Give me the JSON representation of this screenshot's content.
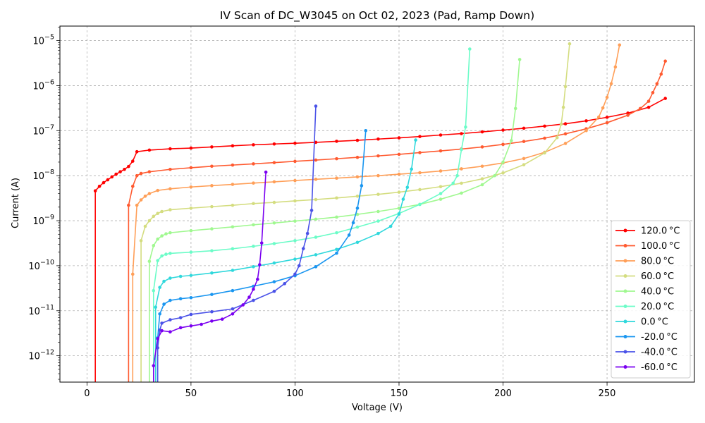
{
  "chart_data": {
    "type": "line",
    "title": "IV Scan of DC_W3045 on Oct 02, 2023 (Pad, Ramp Down)",
    "xlabel": "Voltage (V)",
    "ylabel": "Current (A)",
    "xlim": [
      -13,
      292
    ],
    "ylim": [
      2.6e-13,
      2.1e-05
    ],
    "yscale": "log",
    "grid": true,
    "legend_position": "lower right",
    "x_ticks": [
      0,
      50,
      100,
      150,
      200,
      250
    ],
    "y_tick_exponents": [
      -12,
      -11,
      -10,
      -9,
      -8,
      -7,
      -6,
      -5
    ],
    "series": [
      {
        "name": "120.0$^\\circ$C",
        "legend": "120.0 °C",
        "color": "#ff0000",
        "points": [
          [
            4,
            1e-13
          ],
          [
            4,
            4.6e-09
          ],
          [
            6,
            5.8e-09
          ],
          [
            8,
            7e-09
          ],
          [
            10,
            8.1e-09
          ],
          [
            12,
            9.4e-09
          ],
          [
            14,
            1.08e-08
          ],
          [
            16,
            1.22e-08
          ],
          [
            18,
            1.38e-08
          ],
          [
            20,
            1.6e-08
          ],
          [
            22,
            2.1e-08
          ],
          [
            24,
            3.4e-08
          ],
          [
            30,
            3.7e-08
          ],
          [
            40,
            3.95e-08
          ],
          [
            50,
            4.1e-08
          ],
          [
            60,
            4.35e-08
          ],
          [
            70,
            4.6e-08
          ],
          [
            80,
            4.85e-08
          ],
          [
            90,
            5.05e-08
          ],
          [
            100,
            5.25e-08
          ],
          [
            110,
            5.5e-08
          ],
          [
            120,
            5.8e-08
          ],
          [
            130,
            6.1e-08
          ],
          [
            140,
            6.5e-08
          ],
          [
            150,
            6.9e-08
          ],
          [
            160,
            7.4e-08
          ],
          [
            170,
            8e-08
          ],
          [
            180,
            8.6e-08
          ],
          [
            190,
            9.4e-08
          ],
          [
            200,
            1.03e-07
          ],
          [
            210,
            1.13e-07
          ],
          [
            220,
            1.26e-07
          ],
          [
            230,
            1.42e-07
          ],
          [
            240,
            1.65e-07
          ],
          [
            250,
            1.98e-07
          ],
          [
            260,
            2.45e-07
          ],
          [
            270,
            3.3e-07
          ],
          [
            278,
            5.2e-07
          ]
        ]
      },
      {
        "name": "100.0$^\\circ$C",
        "legend": "100.0 °C",
        "color": "#ff5a30",
        "points": [
          [
            20,
            1e-13
          ],
          [
            20,
            2.2e-09
          ],
          [
            22,
            5.8e-09
          ],
          [
            24,
            1e-08
          ],
          [
            26,
            1.12e-08
          ],
          [
            30,
            1.22e-08
          ],
          [
            40,
            1.38e-08
          ],
          [
            50,
            1.5e-08
          ],
          [
            60,
            1.62e-08
          ],
          [
            70,
            1.72e-08
          ],
          [
            80,
            1.83e-08
          ],
          [
            90,
            1.95e-08
          ],
          [
            100,
            2.08e-08
          ],
          [
            110,
            2.22e-08
          ],
          [
            120,
            2.38e-08
          ],
          [
            130,
            2.55e-08
          ],
          [
            140,
            2.75e-08
          ],
          [
            150,
            2.98e-08
          ],
          [
            160,
            3.25e-08
          ],
          [
            170,
            3.55e-08
          ],
          [
            180,
            3.9e-08
          ],
          [
            190,
            4.35e-08
          ],
          [
            200,
            4.95e-08
          ],
          [
            210,
            5.75e-08
          ],
          [
            220,
            6.8e-08
          ],
          [
            230,
            8.5e-08
          ],
          [
            240,
            1.1e-07
          ],
          [
            250,
            1.5e-07
          ],
          [
            260,
            2.2e-07
          ],
          [
            266,
            3.1e-07
          ],
          [
            270,
            4.5e-07
          ],
          [
            272,
            7e-07
          ],
          [
            274,
            1.1e-06
          ],
          [
            276,
            1.8e-06
          ],
          [
            278,
            3.5e-06
          ]
        ]
      },
      {
        "name": "80.0$^\\circ$C",
        "legend": "80.0 °C",
        "color": "#ff9f58",
        "points": [
          [
            22,
            1e-13
          ],
          [
            22,
            6.5e-11
          ],
          [
            24,
            2.2e-09
          ],
          [
            26,
            2.9e-09
          ],
          [
            28,
            3.5e-09
          ],
          [
            30,
            4e-09
          ],
          [
            34,
            4.7e-09
          ],
          [
            40,
            5.1e-09
          ],
          [
            50,
            5.6e-09
          ],
          [
            60,
            6e-09
          ],
          [
            70,
            6.4e-09
          ],
          [
            80,
            6.85e-09
          ],
          [
            90,
            7.3e-09
          ],
          [
            100,
            7.8e-09
          ],
          [
            110,
            8.3e-09
          ],
          [
            120,
            8.8e-09
          ],
          [
            130,
            9.4e-09
          ],
          [
            140,
            1e-08
          ],
          [
            150,
            1.08e-08
          ],
          [
            160,
            1.16e-08
          ],
          [
            170,
            1.27e-08
          ],
          [
            180,
            1.42e-08
          ],
          [
            190,
            1.62e-08
          ],
          [
            200,
            1.92e-08
          ],
          [
            210,
            2.4e-08
          ],
          [
            220,
            3.3e-08
          ],
          [
            230,
            5.2e-08
          ],
          [
            240,
            1e-07
          ],
          [
            246,
            2e-07
          ],
          [
            248,
            3.2e-07
          ],
          [
            250,
            5.5e-07
          ],
          [
            252,
            1.1e-06
          ],
          [
            254,
            2.6e-06
          ],
          [
            256,
            8e-06
          ]
        ]
      },
      {
        "name": "60.0$^\\circ$C",
        "legend": "60.0 °C",
        "color": "#d4dd80",
        "points": [
          [
            26,
            1e-13
          ],
          [
            26,
            3.6e-10
          ],
          [
            28,
            7.5e-10
          ],
          [
            30,
            1e-09
          ],
          [
            32,
            1.25e-09
          ],
          [
            34,
            1.45e-09
          ],
          [
            36,
            1.6e-09
          ],
          [
            40,
            1.75e-09
          ],
          [
            50,
            1.9e-09
          ],
          [
            60,
            2.05e-09
          ],
          [
            70,
            2.2e-09
          ],
          [
            80,
            2.4e-09
          ],
          [
            90,
            2.55e-09
          ],
          [
            100,
            2.75e-09
          ],
          [
            110,
            2.95e-09
          ],
          [
            120,
            3.2e-09
          ],
          [
            130,
            3.5e-09
          ],
          [
            140,
            3.85e-09
          ],
          [
            150,
            4.3e-09
          ],
          [
            160,
            4.9e-09
          ],
          [
            170,
            5.7e-09
          ],
          [
            180,
            6.8e-09
          ],
          [
            190,
            8.5e-09
          ],
          [
            200,
            1.15e-08
          ],
          [
            210,
            1.75e-08
          ],
          [
            220,
            3.2e-08
          ],
          [
            226,
            7e-08
          ],
          [
            228,
            1.4e-07
          ],
          [
            229,
            3.3e-07
          ],
          [
            230,
            9.5e-07
          ],
          [
            232,
            8.5e-06
          ]
        ]
      },
      {
        "name": "40.0$^\\circ$C",
        "legend": "40.0 °C",
        "color": "#a0f890",
        "points": [
          [
            30,
            1e-13
          ],
          [
            30,
            1.25e-10
          ],
          [
            32,
            2.8e-10
          ],
          [
            34,
            3.9e-10
          ],
          [
            36,
            4.6e-10
          ],
          [
            38,
            5.1e-10
          ],
          [
            40,
            5.4e-10
          ],
          [
            50,
            6e-10
          ],
          [
            60,
            6.6e-10
          ],
          [
            70,
            7.3e-10
          ],
          [
            80,
            8.1e-10
          ],
          [
            90,
            8.9e-10
          ],
          [
            100,
            9.8e-10
          ],
          [
            110,
            1.08e-09
          ],
          [
            120,
            1.2e-09
          ],
          [
            130,
            1.38e-09
          ],
          [
            140,
            1.6e-09
          ],
          [
            150,
            1.9e-09
          ],
          [
            160,
            2.3e-09
          ],
          [
            170,
            3e-09
          ],
          [
            180,
            4.1e-09
          ],
          [
            190,
            6.3e-09
          ],
          [
            196,
            1e-08
          ],
          [
            200,
            2e-08
          ],
          [
            204,
            6e-08
          ],
          [
            206,
            3.1e-07
          ],
          [
            208,
            3.8e-06
          ]
        ]
      },
      {
        "name": "20.0$^\\circ$C",
        "legend": "20.0 °C",
        "color": "#6cfcc8",
        "points": [
          [
            32,
            1e-13
          ],
          [
            32,
            2.8e-11
          ],
          [
            34,
            1.3e-10
          ],
          [
            36,
            1.65e-10
          ],
          [
            38,
            1.8e-10
          ],
          [
            40,
            1.88e-10
          ],
          [
            50,
            2e-10
          ],
          [
            60,
            2.15e-10
          ],
          [
            70,
            2.38e-10
          ],
          [
            80,
            2.7e-10
          ],
          [
            90,
            3.1e-10
          ],
          [
            100,
            3.6e-10
          ],
          [
            110,
            4.3e-10
          ],
          [
            120,
            5.4e-10
          ],
          [
            130,
            7.2e-10
          ],
          [
            140,
            9.8e-10
          ],
          [
            150,
            1.45e-09
          ],
          [
            160,
            2.3e-09
          ],
          [
            170,
            4e-09
          ],
          [
            176,
            6.8e-09
          ],
          [
            178,
            1e-08
          ],
          [
            180,
            3.8e-08
          ],
          [
            182,
            1.2e-07
          ],
          [
            184,
            6.5e-06
          ]
        ]
      },
      {
        "name": "0.0$^\\circ$C",
        "legend": "0.0 °C",
        "color": "#30d8dc",
        "points": [
          [
            33,
            1e-13
          ],
          [
            33,
            1.2e-11
          ],
          [
            35,
            3.3e-11
          ],
          [
            37,
            4.5e-11
          ],
          [
            40,
            5.3e-11
          ],
          [
            45,
            5.8e-11
          ],
          [
            50,
            6.1e-11
          ],
          [
            60,
            6.9e-11
          ],
          [
            70,
            7.9e-11
          ],
          [
            80,
            9.5e-11
          ],
          [
            90,
            1.15e-10
          ],
          [
            100,
            1.4e-10
          ],
          [
            110,
            1.75e-10
          ],
          [
            120,
            2.3e-10
          ],
          [
            130,
            3.3e-10
          ],
          [
            140,
            5.2e-10
          ],
          [
            146,
            7.5e-10
          ],
          [
            150,
            1.4e-09
          ],
          [
            152,
            3e-09
          ],
          [
            154,
            5.5e-09
          ],
          [
            156,
            1.4e-08
          ],
          [
            158,
            6.2e-08
          ]
        ]
      },
      {
        "name": "-20.0$^\\circ$C",
        "legend": "-20.0 °C",
        "color": "#1a96f0",
        "points": [
          [
            34,
            1e-13
          ],
          [
            34,
            2.5e-12
          ],
          [
            35,
            8.5e-12
          ],
          [
            37,
            1.4e-11
          ],
          [
            40,
            1.7e-11
          ],
          [
            45,
            1.85e-11
          ],
          [
            50,
            1.95e-11
          ],
          [
            60,
            2.3e-11
          ],
          [
            70,
            2.8e-11
          ],
          [
            80,
            3.5e-11
          ],
          [
            90,
            4.4e-11
          ],
          [
            100,
            6e-11
          ],
          [
            110,
            9.5e-11
          ],
          [
            120,
            1.9e-10
          ],
          [
            126,
            4.8e-10
          ],
          [
            128,
            9e-10
          ],
          [
            130,
            1.9e-09
          ],
          [
            132,
            6e-09
          ],
          [
            134,
            1e-07
          ]
        ]
      },
      {
        "name": "-40.0$^\\circ$C",
        "legend": "-40.0 °C",
        "color": "#4a52e8",
        "points": [
          [
            34,
            1e-13
          ],
          [
            34,
            1.5e-12
          ],
          [
            35,
            3.7e-12
          ],
          [
            36,
            5.3e-12
          ],
          [
            40,
            6.3e-12
          ],
          [
            45,
            7e-12
          ],
          [
            50,
            8.3e-12
          ],
          [
            60,
            9.5e-12
          ],
          [
            70,
            1.1e-11
          ],
          [
            80,
            1.7e-11
          ],
          [
            90,
            2.7e-11
          ],
          [
            95,
            4e-11
          ],
          [
            100,
            6.5e-11
          ],
          [
            102,
            1e-10
          ],
          [
            104,
            2.4e-10
          ],
          [
            106,
            5.2e-10
          ],
          [
            108,
            1.7e-09
          ],
          [
            110,
            3.5e-07
          ]
        ]
      },
      {
        "name": "-60.0$^\\circ$C",
        "legend": "-60.0 °C",
        "color": "#7a00f0",
        "points": [
          [
            32,
            1e-13
          ],
          [
            32,
            6e-13
          ],
          [
            34,
            2.4e-12
          ],
          [
            36,
            3.6e-12
          ],
          [
            40,
            3.4e-12
          ],
          [
            45,
            4.2e-12
          ],
          [
            50,
            4.6e-12
          ],
          [
            55,
            5e-12
          ],
          [
            60,
            5.9e-12
          ],
          [
            65,
            6.5e-12
          ],
          [
            70,
            8.5e-12
          ],
          [
            75,
            1.35e-11
          ],
          [
            78,
            2e-11
          ],
          [
            80,
            3e-11
          ],
          [
            82,
            5e-11
          ],
          [
            83,
            1.05e-10
          ],
          [
            84,
            3.2e-10
          ],
          [
            86,
            1.2e-08
          ]
        ]
      }
    ]
  }
}
